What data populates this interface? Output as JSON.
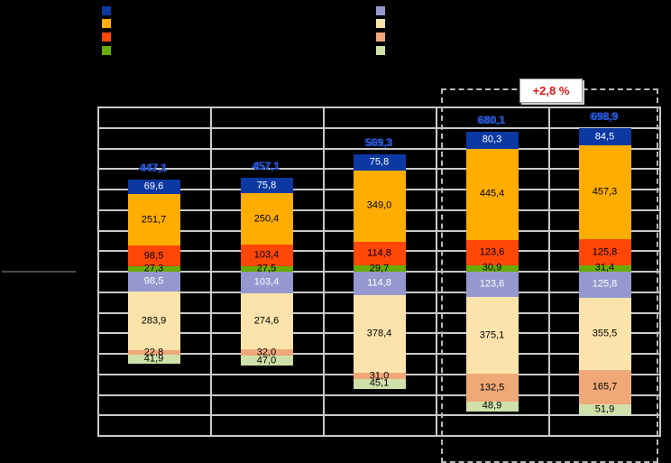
{
  "colors": {
    "background": "#000000",
    "grid": "#CACACA",
    "total_label": "#2E5ED8",
    "total_label_shadow": "#12328F",
    "annotation_text": "#DE1414",
    "annotation_bg": "#FFFFFF",
    "dashed_border": "#B8B8B8",
    "tick_line": "#4A4A4A"
  },
  "annotation": {
    "label": "+2,8 %"
  },
  "chart_data": {
    "type": "bar",
    "stacked": true,
    "diverging": true,
    "grid": true,
    "ylim": [
      -800,
      800
    ],
    "gridline_step": 100,
    "categories": [
      "",
      "",
      "",
      "",
      ""
    ],
    "totals": [
      "447,1",
      "457,1",
      "569,3",
      "680,1",
      "698,9"
    ],
    "upper_series": [
      {
        "name": "navy-blue",
        "color": "#0B38A3",
        "text_color": "#FFFFFF",
        "values": [
          69.6,
          75.8,
          75.8,
          80.3,
          84.5
        ]
      },
      {
        "name": "amber",
        "color": "#FFAD00",
        "text_color": "#000000",
        "values": [
          251.7,
          250.4,
          349.0,
          445.4,
          457.3
        ]
      },
      {
        "name": "orange-red",
        "color": "#FF4708",
        "text_color": "#000000",
        "values": [
          98.5,
          103.4,
          114.8,
          123.6,
          125.8
        ]
      },
      {
        "name": "green",
        "color": "#69AB05",
        "text_color": "#000000",
        "values": [
          27.3,
          27.5,
          29.7,
          30.9,
          31.4
        ]
      }
    ],
    "lower_series": [
      {
        "name": "periwinkle",
        "color": "#9598CE",
        "text_color": "#FFFFFF",
        "values": [
          98.5,
          103.4,
          114.8,
          123.6,
          125.8
        ]
      },
      {
        "name": "light-peach",
        "color": "#FCE3AC",
        "text_color": "#000000",
        "values": [
          283.9,
          274.6,
          378.4,
          375.1,
          355.5
        ]
      },
      {
        "name": "salmon",
        "color": "#F0A878",
        "text_color": "#000000",
        "values": [
          22.8,
          32.0,
          31.0,
          132.5,
          165.7
        ]
      },
      {
        "name": "pale-green",
        "color": "#CFE0A9",
        "text_color": "#000000",
        "values": [
          41.9,
          47.0,
          45.1,
          48.9,
          51.9
        ]
      }
    ],
    "annotation": "+2,8 %",
    "legend_position": "top"
  }
}
